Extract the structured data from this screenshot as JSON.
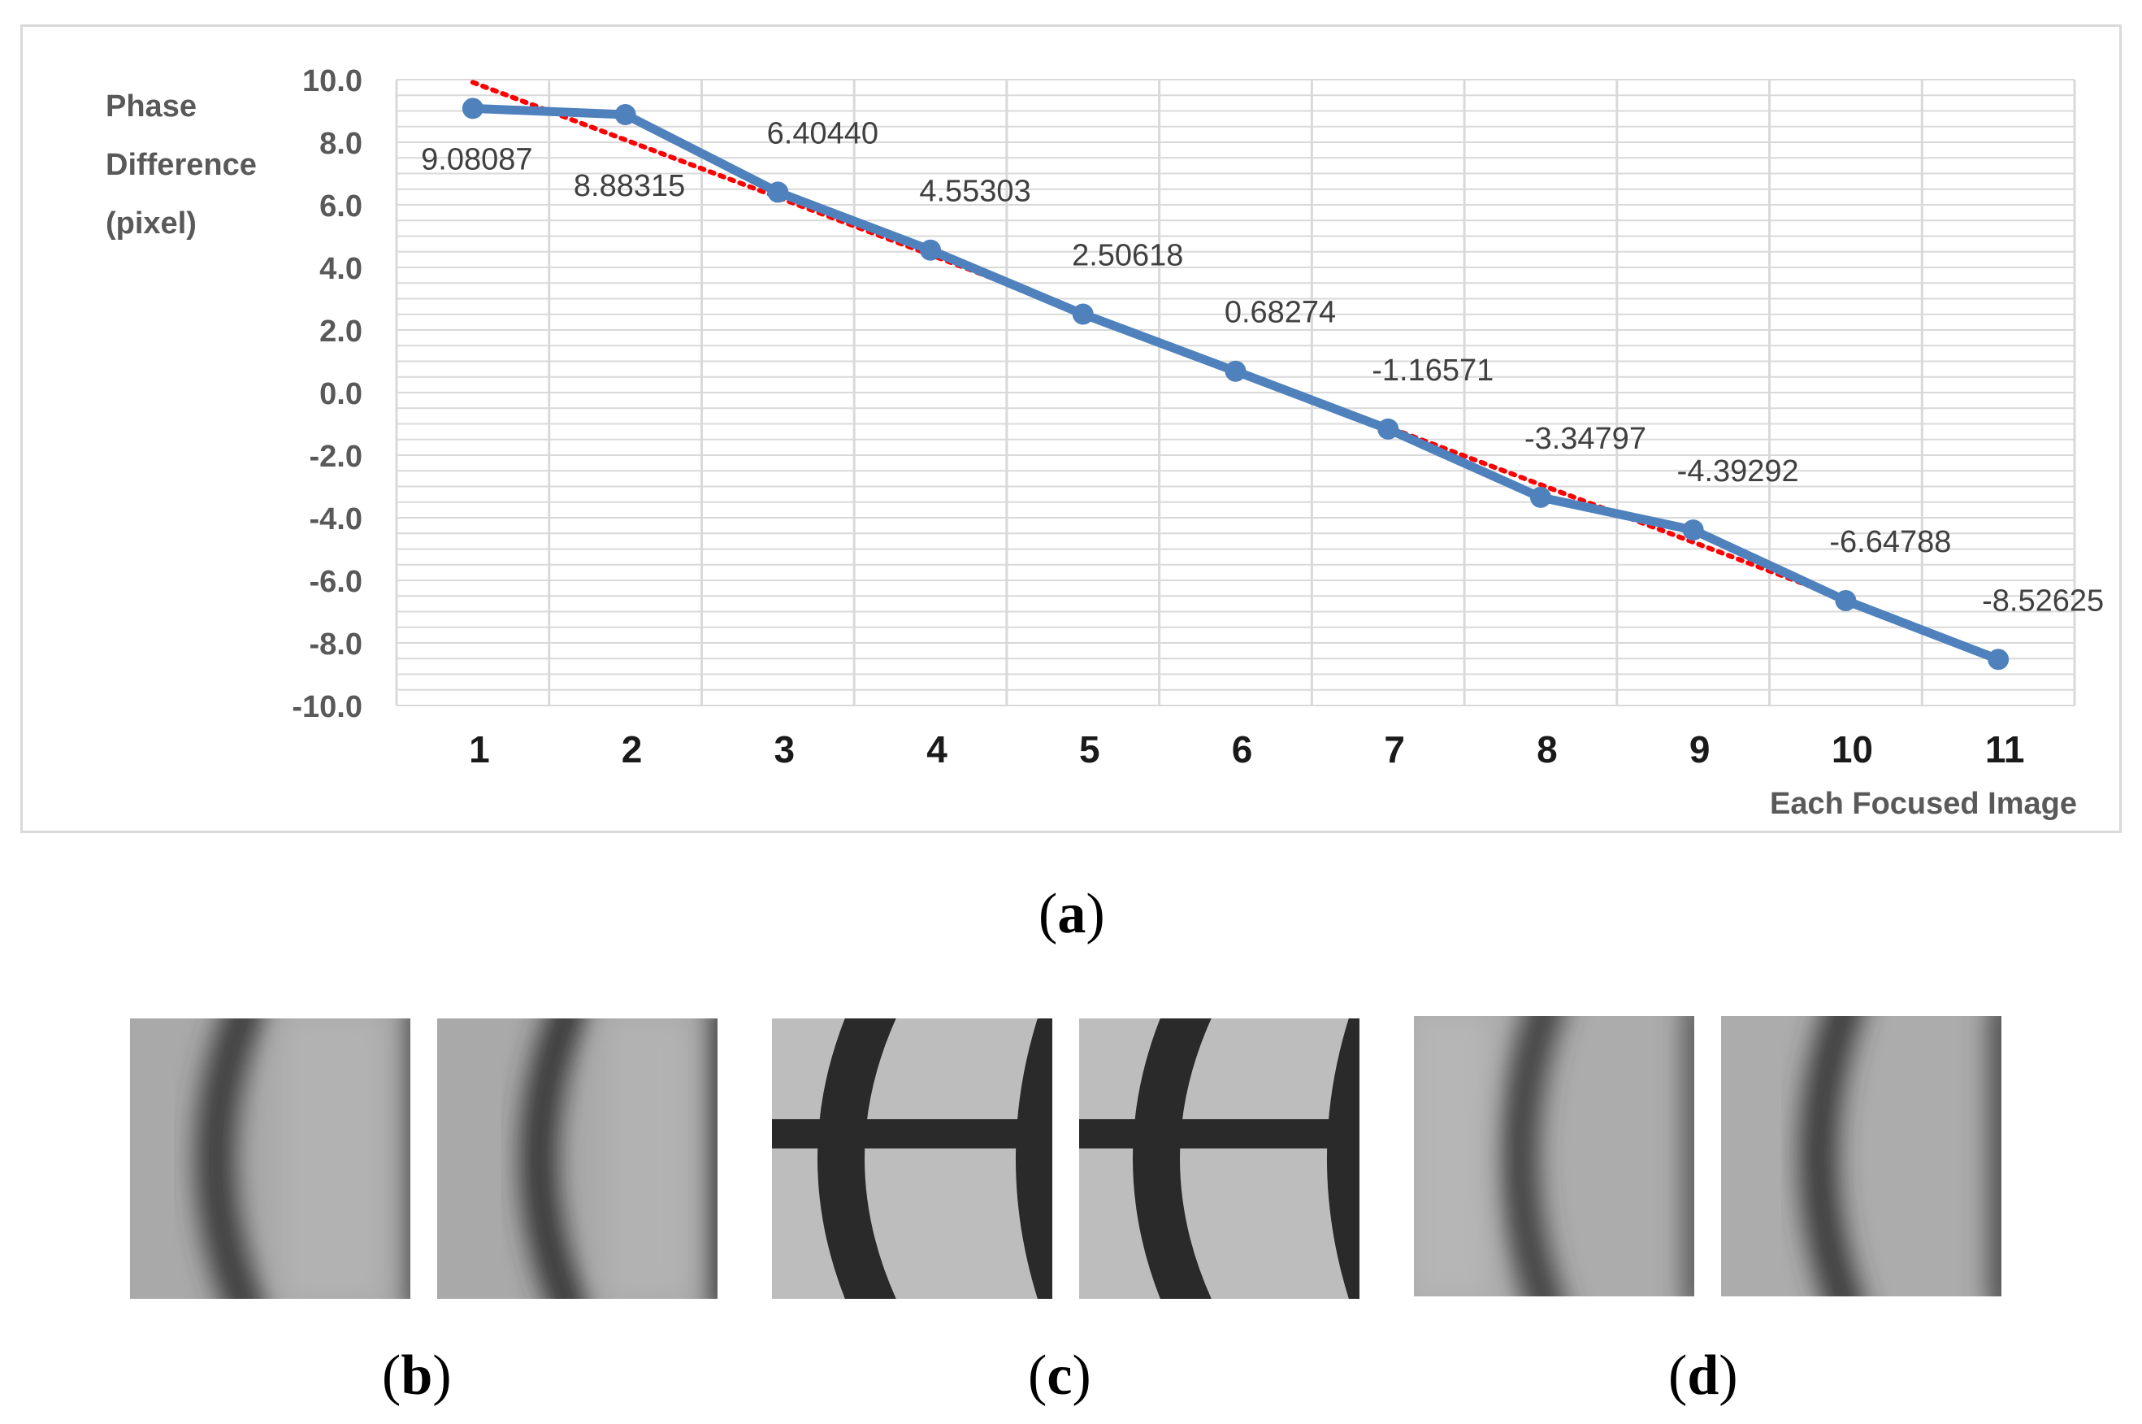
{
  "chart_data": {
    "type": "line",
    "ylabel": [
      "Phase",
      "Difference",
      "(pixel)"
    ],
    "xlabel": "Each Focused Image",
    "ylim": [
      -10,
      10
    ],
    "ytick_step": 2,
    "ytick_labels": [
      "10.0",
      "8.0",
      "6.0",
      "4.0",
      "2.0",
      "0.0",
      "-2.0",
      "-4.0",
      "-6.0",
      "-8.0",
      "-10.0"
    ],
    "x": [
      1,
      2,
      3,
      4,
      5,
      6,
      7,
      8,
      9,
      10,
      11
    ],
    "xtick_labels": [
      "1",
      "2",
      "3",
      "4",
      "5",
      "6",
      "7",
      "8",
      "9",
      "10",
      "11"
    ],
    "series": [
      {
        "values": [
          9.08087,
          8.88315,
          6.4044,
          4.55303,
          2.50618,
          0.68274,
          -1.16571,
          -3.34797,
          -4.39292,
          -6.64788,
          -8.52625
        ],
        "labels": [
          "9.08087",
          "8.88315",
          "6.40440",
          "4.55303",
          "2.50618",
          "0.68274",
          "-1.16571",
          "-3.34797",
          "-4.39292",
          "-6.64788",
          "-8.52625"
        ],
        "color": "#4f81bd",
        "style": "solid-with-markers"
      }
    ],
    "trendline": {
      "type": "linear",
      "color": "#ff0000",
      "style": "dotted"
    },
    "grid": true,
    "gridline_color": "#d9d9d9",
    "legend": "none"
  },
  "panels": {
    "a": "a",
    "b": "b",
    "c": "c",
    "d": "d"
  },
  "images": [
    {
      "panel": "b",
      "description_icon": "blurred-arc-image"
    },
    {
      "panel": "b",
      "description_icon": "blurred-arc-image"
    },
    {
      "panel": "c",
      "description_icon": "sharp-target-image"
    },
    {
      "panel": "c",
      "description_icon": "sharp-target-image"
    },
    {
      "panel": "d",
      "description_icon": "blurred-arc-image"
    },
    {
      "panel": "d",
      "description_icon": "blurred-arc-image"
    }
  ]
}
